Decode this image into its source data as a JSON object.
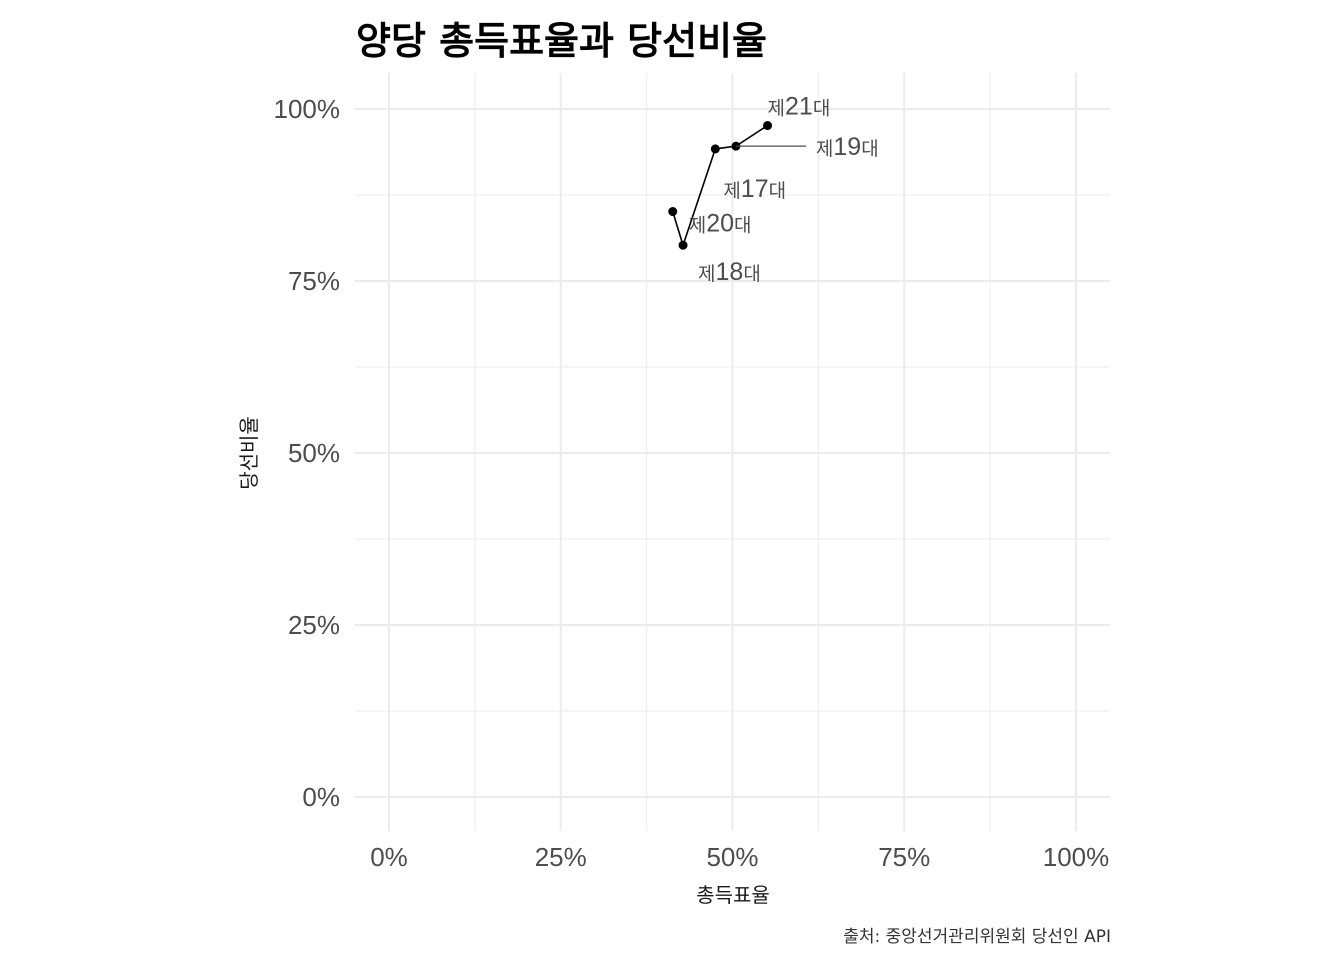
{
  "chart_data": {
    "type": "line",
    "title": "양당 총득표율과 당선비율",
    "xlabel": "총득표율",
    "ylabel": "당선비율",
    "caption": "출처: 중앙선거관리위원회 당선인 API",
    "xlim": [
      0,
      1
    ],
    "ylim": [
      0,
      1
    ],
    "x_ticks": [
      "0%",
      "25%",
      "50%",
      "75%",
      "100%"
    ],
    "y_ticks": [
      "0%",
      "25%",
      "50%",
      "75%",
      "100%"
    ],
    "grid": true,
    "points": [
      {
        "label": "제17대",
        "x": 0.475,
        "y": 0.942
      },
      {
        "label": "제18대",
        "x": 0.428,
        "y": 0.802
      },
      {
        "label": "제19대",
        "x": 0.505,
        "y": 0.946
      },
      {
        "label": "제20대",
        "x": 0.413,
        "y": 0.851
      },
      {
        "label": "제21대",
        "x": 0.551,
        "y": 0.976
      }
    ],
    "path_order": [
      "제20대",
      "제18대",
      "제17대",
      "제19대",
      "제21대"
    ],
    "colors": {
      "line": "#000000",
      "grid": "#ebebeb",
      "label": "#4d4d4d"
    }
  }
}
